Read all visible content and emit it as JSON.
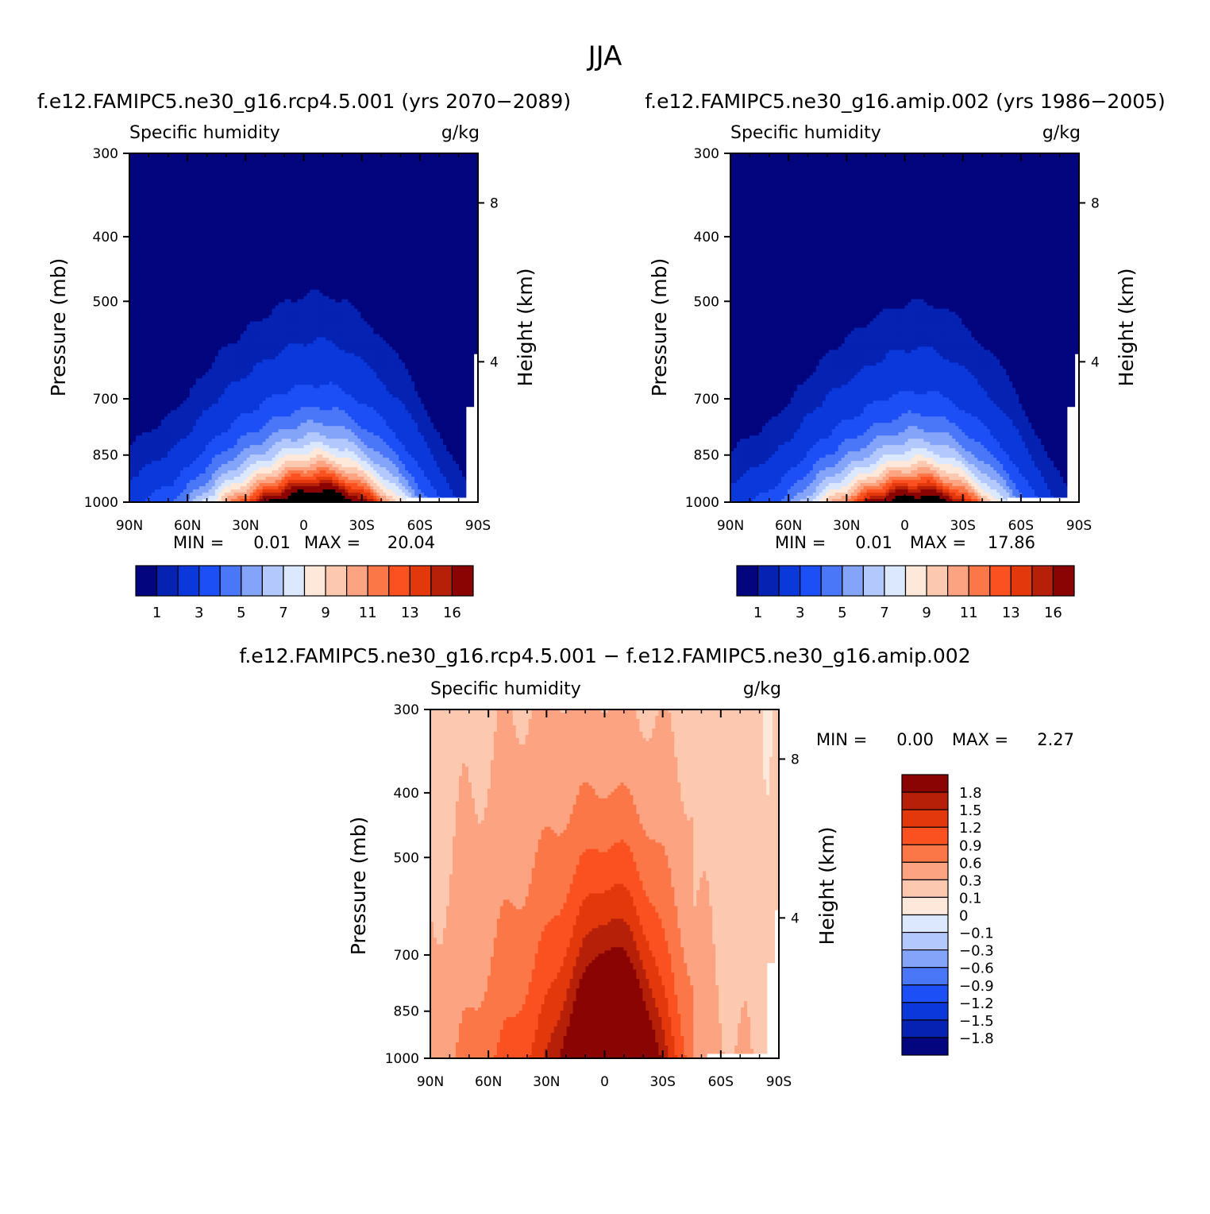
{
  "page_title": "JJA",
  "colors": {
    "future_past_scale": [
      "#02057d",
      "#0522b3",
      "#0a38db",
      "#1c4ff5",
      "#4a77f7",
      "#84a4fa",
      "#b3c8fc",
      "#dbe8fd",
      "#fee8da",
      "#fdc8b0",
      "#fca382",
      "#fc7748",
      "#fb5120",
      "#e2380b",
      "#b72008",
      "#8a0404"
    ],
    "diff_scale": [
      "#02057d",
      "#0522b3",
      "#0a38db",
      "#1c4ff5",
      "#4a77f7",
      "#84a4fa",
      "#b3c8fc",
      "#dbe8fd",
      "#fee8da",
      "#fdc8b0",
      "#fca382",
      "#fc7748",
      "#fb5120",
      "#e2380b",
      "#b72008",
      "#8a0404"
    ]
  },
  "chart_data": [
    {
      "type": "heatmap",
      "title": "f.e12.FAMIPC5.ne30_g16.rcp4.5.001 (yrs 2070−2089)",
      "subtitle_left": "Specific humidity",
      "subtitle_right": "g/kg",
      "xlabel": "",
      "ylabel": "Pressure (mb)",
      "ylabel_right": "Height (km)",
      "x_ticks": [
        "90N",
        "60N",
        "30N",
        "0",
        "30S",
        "60S",
        "90S"
      ],
      "x_range": [
        90,
        -90
      ],
      "y_ticks": [
        300,
        400,
        500,
        700,
        850,
        1000
      ],
      "y_range": [
        300,
        1000
      ],
      "height_ticks": [
        8,
        4
      ],
      "height_tick_pressures": [
        356,
        616
      ],
      "stats": {
        "min_label": "MIN =",
        "min": "0.01",
        "max_label": "MAX =",
        "max": "20.04"
      },
      "colorbar_labels": [
        "1",
        "3",
        "5",
        "7",
        "9",
        "11",
        "13",
        "16"
      ],
      "contour_levels": [
        0.5,
        1,
        2,
        3,
        4,
        5,
        6,
        7,
        8,
        9,
        10,
        11,
        12,
        13,
        14,
        16
      ],
      "peak_lat": -8,
      "peak_value": 20.04,
      "lat_profile": [
        0.08,
        0.1,
        0.12,
        0.15,
        0.2,
        0.28,
        0.38,
        0.48,
        0.58,
        0.68,
        0.8,
        0.9,
        0.97,
        1.0,
        0.96,
        0.86,
        0.72,
        0.58,
        0.44,
        0.32,
        0.2,
        0.12,
        0.07,
        0.04,
        0.03
      ]
    },
    {
      "type": "heatmap",
      "title": "f.e12.FAMIPC5.ne30_g16.amip.002 (yrs 1986−2005)",
      "subtitle_left": "Specific humidity",
      "subtitle_right": "g/kg",
      "xlabel": "",
      "ylabel": "Pressure (mb)",
      "ylabel_right": "Height (km)",
      "x_ticks": [
        "90N",
        "60N",
        "30N",
        "0",
        "30S",
        "60S",
        "90S"
      ],
      "x_range": [
        90,
        -90
      ],
      "y_ticks": [
        300,
        400,
        500,
        700,
        850,
        1000
      ],
      "y_range": [
        300,
        1000
      ],
      "height_ticks": [
        8,
        4
      ],
      "height_tick_pressures": [
        356,
        616
      ],
      "stats": {
        "min_label": "MIN =",
        "min": "0.01",
        "max_label": "MAX =",
        "max": "17.86"
      },
      "colorbar_labels": [
        "1",
        "3",
        "5",
        "7",
        "9",
        "11",
        "13",
        "16"
      ],
      "contour_levels": [
        0.5,
        1,
        2,
        3,
        4,
        5,
        6,
        7,
        8,
        9,
        10,
        11,
        12,
        13,
        14,
        16
      ],
      "peak_lat": -8,
      "peak_value": 17.86,
      "lat_profile": [
        0.08,
        0.1,
        0.12,
        0.15,
        0.2,
        0.28,
        0.38,
        0.48,
        0.58,
        0.68,
        0.8,
        0.9,
        0.97,
        1.0,
        0.96,
        0.86,
        0.72,
        0.58,
        0.44,
        0.32,
        0.2,
        0.12,
        0.07,
        0.04,
        0.03
      ]
    },
    {
      "type": "heatmap",
      "title": "f.e12.FAMIPC5.ne30_g16.rcp4.5.001 − f.e12.FAMIPC5.ne30_g16.amip.002",
      "subtitle_left": "Specific humidity",
      "subtitle_right": "g/kg",
      "xlabel": "",
      "ylabel": "Pressure (mb)",
      "ylabel_right": "Height (km)",
      "x_ticks": [
        "90N",
        "60N",
        "30N",
        "0",
        "30S",
        "60S",
        "90S"
      ],
      "x_range": [
        90,
        -90
      ],
      "y_ticks": [
        300,
        400,
        500,
        700,
        850,
        1000
      ],
      "y_range": [
        300,
        1000
      ],
      "height_ticks": [
        8,
        4
      ],
      "height_tick_pressures": [
        356,
        616
      ],
      "stats": {
        "min_label": "MIN =",
        "min": "0.00",
        "max_label": "MAX =",
        "max": "2.27"
      },
      "colorbar_labels": [
        "1.8",
        "1.5",
        "1.2",
        "0.9",
        "0.6",
        "0.3",
        "0.1",
        "0",
        "−0.1",
        "−0.3",
        "−0.6",
        "−0.9",
        "−1.2",
        "−1.5",
        "−1.8"
      ],
      "contour_levels": [
        0.1,
        0.3,
        0.6,
        0.9,
        1.2,
        1.5,
        1.8
      ],
      "peak_lat": -5,
      "peak_value": 2.27
    }
  ]
}
